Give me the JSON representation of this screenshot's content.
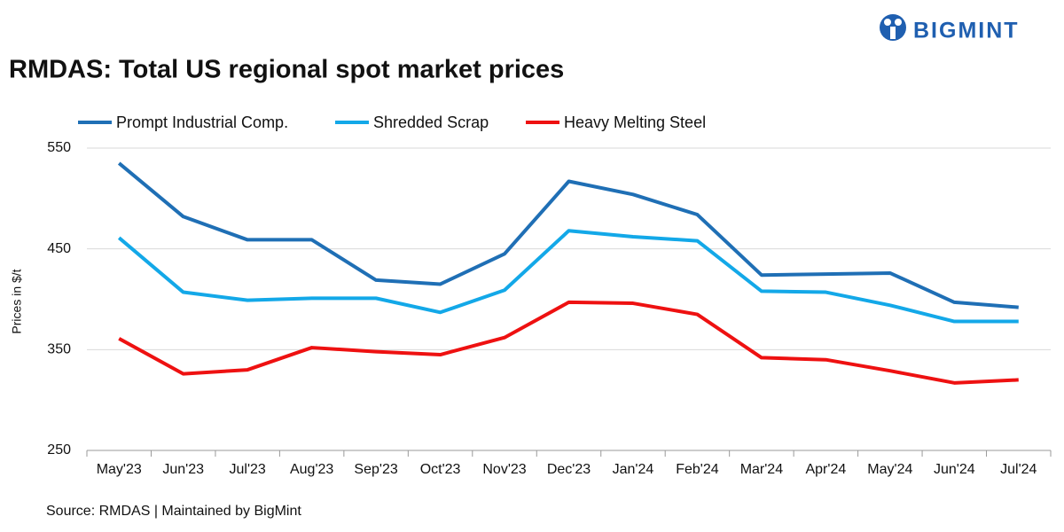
{
  "chart_data": {
    "type": "line",
    "title": "RMDAS: Total US regional spot market prices",
    "logo": "BIGMINT",
    "source": "Source: RMDAS | Maintained by BigMint",
    "y_label": "Prices in $/t",
    "categories": [
      "May'23",
      "Jun'23",
      "Jul'23",
      "Aug'23",
      "Sep'23",
      "Oct'23",
      "Nov'23",
      "Dec'23",
      "Jan'24",
      "Feb'24",
      "Mar'24",
      "Apr'24",
      "May'24",
      "Jun'24",
      "Jul'24"
    ],
    "series": [
      {
        "name": "Prompt Industrial Comp.",
        "color": "#1f6fb5",
        "values": [
          535,
          482,
          459,
          459,
          419,
          415,
          445,
          517,
          504,
          484,
          424,
          425,
          426,
          397,
          392
        ]
      },
      {
        "name": "Shredded Scrap",
        "color": "#13a8e8",
        "values": [
          461,
          407,
          399,
          401,
          401,
          387,
          409,
          468,
          462,
          458,
          408,
          407,
          394,
          378,
          378
        ]
      },
      {
        "name": "Heavy Melting Steel",
        "color": "#ee1111",
        "values": [
          361,
          326,
          330,
          352,
          348,
          345,
          362,
          397,
          396,
          385,
          342,
          340,
          329,
          317,
          320
        ]
      }
    ],
    "ylim": [
      250,
      550
    ],
    "yticks": [
      250,
      350,
      450,
      550
    ],
    "grid": true,
    "legend": "top"
  }
}
